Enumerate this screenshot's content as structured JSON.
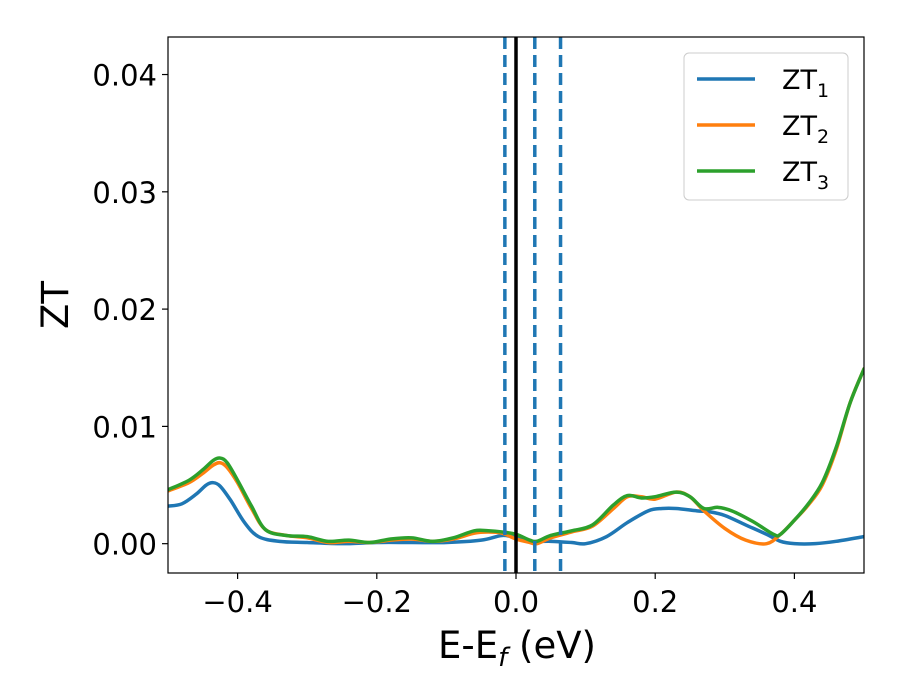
{
  "chart_data": {
    "type": "line",
    "xlabel": "E-E",
    "xlabel_sub": "f",
    "xlabel_unit": "(eV)",
    "ylabel": "ZT",
    "xlim": [
      -0.5,
      0.5
    ],
    "ylim": [
      -0.0025,
      0.0432
    ],
    "xticks": [
      -0.4,
      -0.2,
      0.0,
      0.2,
      0.4
    ],
    "xtick_labels": [
      "−0.4",
      "−0.2",
      "0.0",
      "0.2",
      "0.4"
    ],
    "yticks": [
      0.0,
      0.01,
      0.02,
      0.03,
      0.04
    ],
    "ytick_labels": [
      "0.00",
      "0.01",
      "0.02",
      "0.03",
      "0.04"
    ],
    "legend_position": "top-right",
    "grid": false,
    "vlines": [
      {
        "x": 0.0,
        "style": "solid",
        "color": "#000000"
      },
      {
        "x": -0.016,
        "style": "dashed",
        "color": "#1f77b4"
      },
      {
        "x": 0.027,
        "style": "dashed",
        "color": "#1f77b4"
      },
      {
        "x": 0.064,
        "style": "dashed",
        "color": "#1f77b4"
      }
    ],
    "series": [
      {
        "name": "ZT",
        "sub": "1",
        "color": "#1f77b4",
        "points": [
          [
            -0.5,
            0.0032
          ],
          [
            -0.48,
            0.0034
          ],
          [
            -0.46,
            0.0042
          ],
          [
            -0.445,
            0.005
          ],
          [
            -0.435,
            0.0052
          ],
          [
            -0.425,
            0.0049
          ],
          [
            -0.41,
            0.0037
          ],
          [
            -0.39,
            0.0018
          ],
          [
            -0.37,
            0.0006
          ],
          [
            -0.34,
            0.0002
          ],
          [
            -0.3,
            0.0001
          ],
          [
            -0.25,
            0.0
          ],
          [
            -0.2,
            0.0001
          ],
          [
            -0.15,
            0.0001
          ],
          [
            -0.1,
            0.0001
          ],
          [
            -0.05,
            0.0003
          ],
          [
            -0.02,
            0.0007
          ],
          [
            0.0,
            0.0005
          ],
          [
            0.02,
            0.0002
          ],
          [
            0.05,
            0.0002
          ],
          [
            0.08,
            0.0001
          ],
          [
            0.1,
            0.0
          ],
          [
            0.13,
            0.0006
          ],
          [
            0.16,
            0.0018
          ],
          [
            0.19,
            0.0028
          ],
          [
            0.21,
            0.003
          ],
          [
            0.23,
            0.003
          ],
          [
            0.26,
            0.0028
          ],
          [
            0.28,
            0.0027
          ],
          [
            0.3,
            0.0024
          ],
          [
            0.33,
            0.0016
          ],
          [
            0.36,
            0.0008
          ],
          [
            0.38,
            0.0002
          ],
          [
            0.4,
            0.0
          ],
          [
            0.43,
            0.0
          ],
          [
            0.46,
            0.0002
          ],
          [
            0.5,
            0.0006
          ]
        ]
      },
      {
        "name": "ZT",
        "sub": "2",
        "color": "#ff7f0e",
        "points": [
          [
            -0.5,
            0.0045
          ],
          [
            -0.47,
            0.0052
          ],
          [
            -0.45,
            0.006
          ],
          [
            -0.435,
            0.0067
          ],
          [
            -0.425,
            0.0069
          ],
          [
            -0.415,
            0.0065
          ],
          [
            -0.4,
            0.0052
          ],
          [
            -0.38,
            0.003
          ],
          [
            -0.36,
            0.0012
          ],
          [
            -0.33,
            0.0007
          ],
          [
            -0.3,
            0.0005
          ],
          [
            -0.27,
            0.0001
          ],
          [
            -0.24,
            0.0002
          ],
          [
            -0.21,
            0.0001
          ],
          [
            -0.18,
            0.0003
          ],
          [
            -0.15,
            0.0004
          ],
          [
            -0.12,
            0.0002
          ],
          [
            -0.09,
            0.0004
          ],
          [
            -0.06,
            0.0009
          ],
          [
            -0.04,
            0.001
          ],
          [
            -0.02,
            0.0009
          ],
          [
            0.0,
            0.0004
          ],
          [
            0.02,
            0.0001
          ],
          [
            0.03,
            0.0
          ],
          [
            0.05,
            0.0005
          ],
          [
            0.08,
            0.001
          ],
          [
            0.11,
            0.0015
          ],
          [
            0.14,
            0.003
          ],
          [
            0.16,
            0.004
          ],
          [
            0.18,
            0.004
          ],
          [
            0.2,
            0.0038
          ],
          [
            0.23,
            0.0044
          ],
          [
            0.25,
            0.004
          ],
          [
            0.27,
            0.0028
          ],
          [
            0.3,
            0.0013
          ],
          [
            0.33,
            0.0003
          ],
          [
            0.36,
            0.0
          ],
          [
            0.38,
            0.0008
          ],
          [
            0.4,
            0.002
          ],
          [
            0.42,
            0.0033
          ],
          [
            0.44,
            0.005
          ],
          [
            0.46,
            0.008
          ],
          [
            0.48,
            0.012
          ],
          [
            0.5,
            0.0149
          ]
        ]
      },
      {
        "name": "ZT",
        "sub": "3",
        "color": "#2ca02c",
        "points": [
          [
            -0.5,
            0.0046
          ],
          [
            -0.47,
            0.0054
          ],
          [
            -0.45,
            0.0063
          ],
          [
            -0.435,
            0.0071
          ],
          [
            -0.425,
            0.0073
          ],
          [
            -0.415,
            0.0069
          ],
          [
            -0.4,
            0.0054
          ],
          [
            -0.38,
            0.0032
          ],
          [
            -0.36,
            0.0012
          ],
          [
            -0.33,
            0.0007
          ],
          [
            -0.3,
            0.0006
          ],
          [
            -0.27,
            0.0002
          ],
          [
            -0.24,
            0.0003
          ],
          [
            -0.21,
            0.0001
          ],
          [
            -0.18,
            0.0004
          ],
          [
            -0.15,
            0.0005
          ],
          [
            -0.12,
            0.0002
          ],
          [
            -0.09,
            0.0005
          ],
          [
            -0.06,
            0.0011
          ],
          [
            -0.04,
            0.0011
          ],
          [
            -0.02,
            0.001
          ],
          [
            0.0,
            0.0008
          ],
          [
            0.02,
            0.0003
          ],
          [
            0.03,
            0.0002
          ],
          [
            0.05,
            0.0007
          ],
          [
            0.08,
            0.0011
          ],
          [
            0.11,
            0.0016
          ],
          [
            0.14,
            0.0033
          ],
          [
            0.16,
            0.0041
          ],
          [
            0.18,
            0.0039
          ],
          [
            0.2,
            0.004
          ],
          [
            0.23,
            0.0044
          ],
          [
            0.25,
            0.004
          ],
          [
            0.27,
            0.003
          ],
          [
            0.29,
            0.0031
          ],
          [
            0.31,
            0.0028
          ],
          [
            0.34,
            0.0019
          ],
          [
            0.37,
            0.0008
          ],
          [
            0.38,
            0.0008
          ],
          [
            0.4,
            0.002
          ],
          [
            0.42,
            0.0034
          ],
          [
            0.44,
            0.0052
          ],
          [
            0.46,
            0.0082
          ],
          [
            0.48,
            0.012
          ],
          [
            0.5,
            0.0149
          ]
        ]
      }
    ]
  }
}
